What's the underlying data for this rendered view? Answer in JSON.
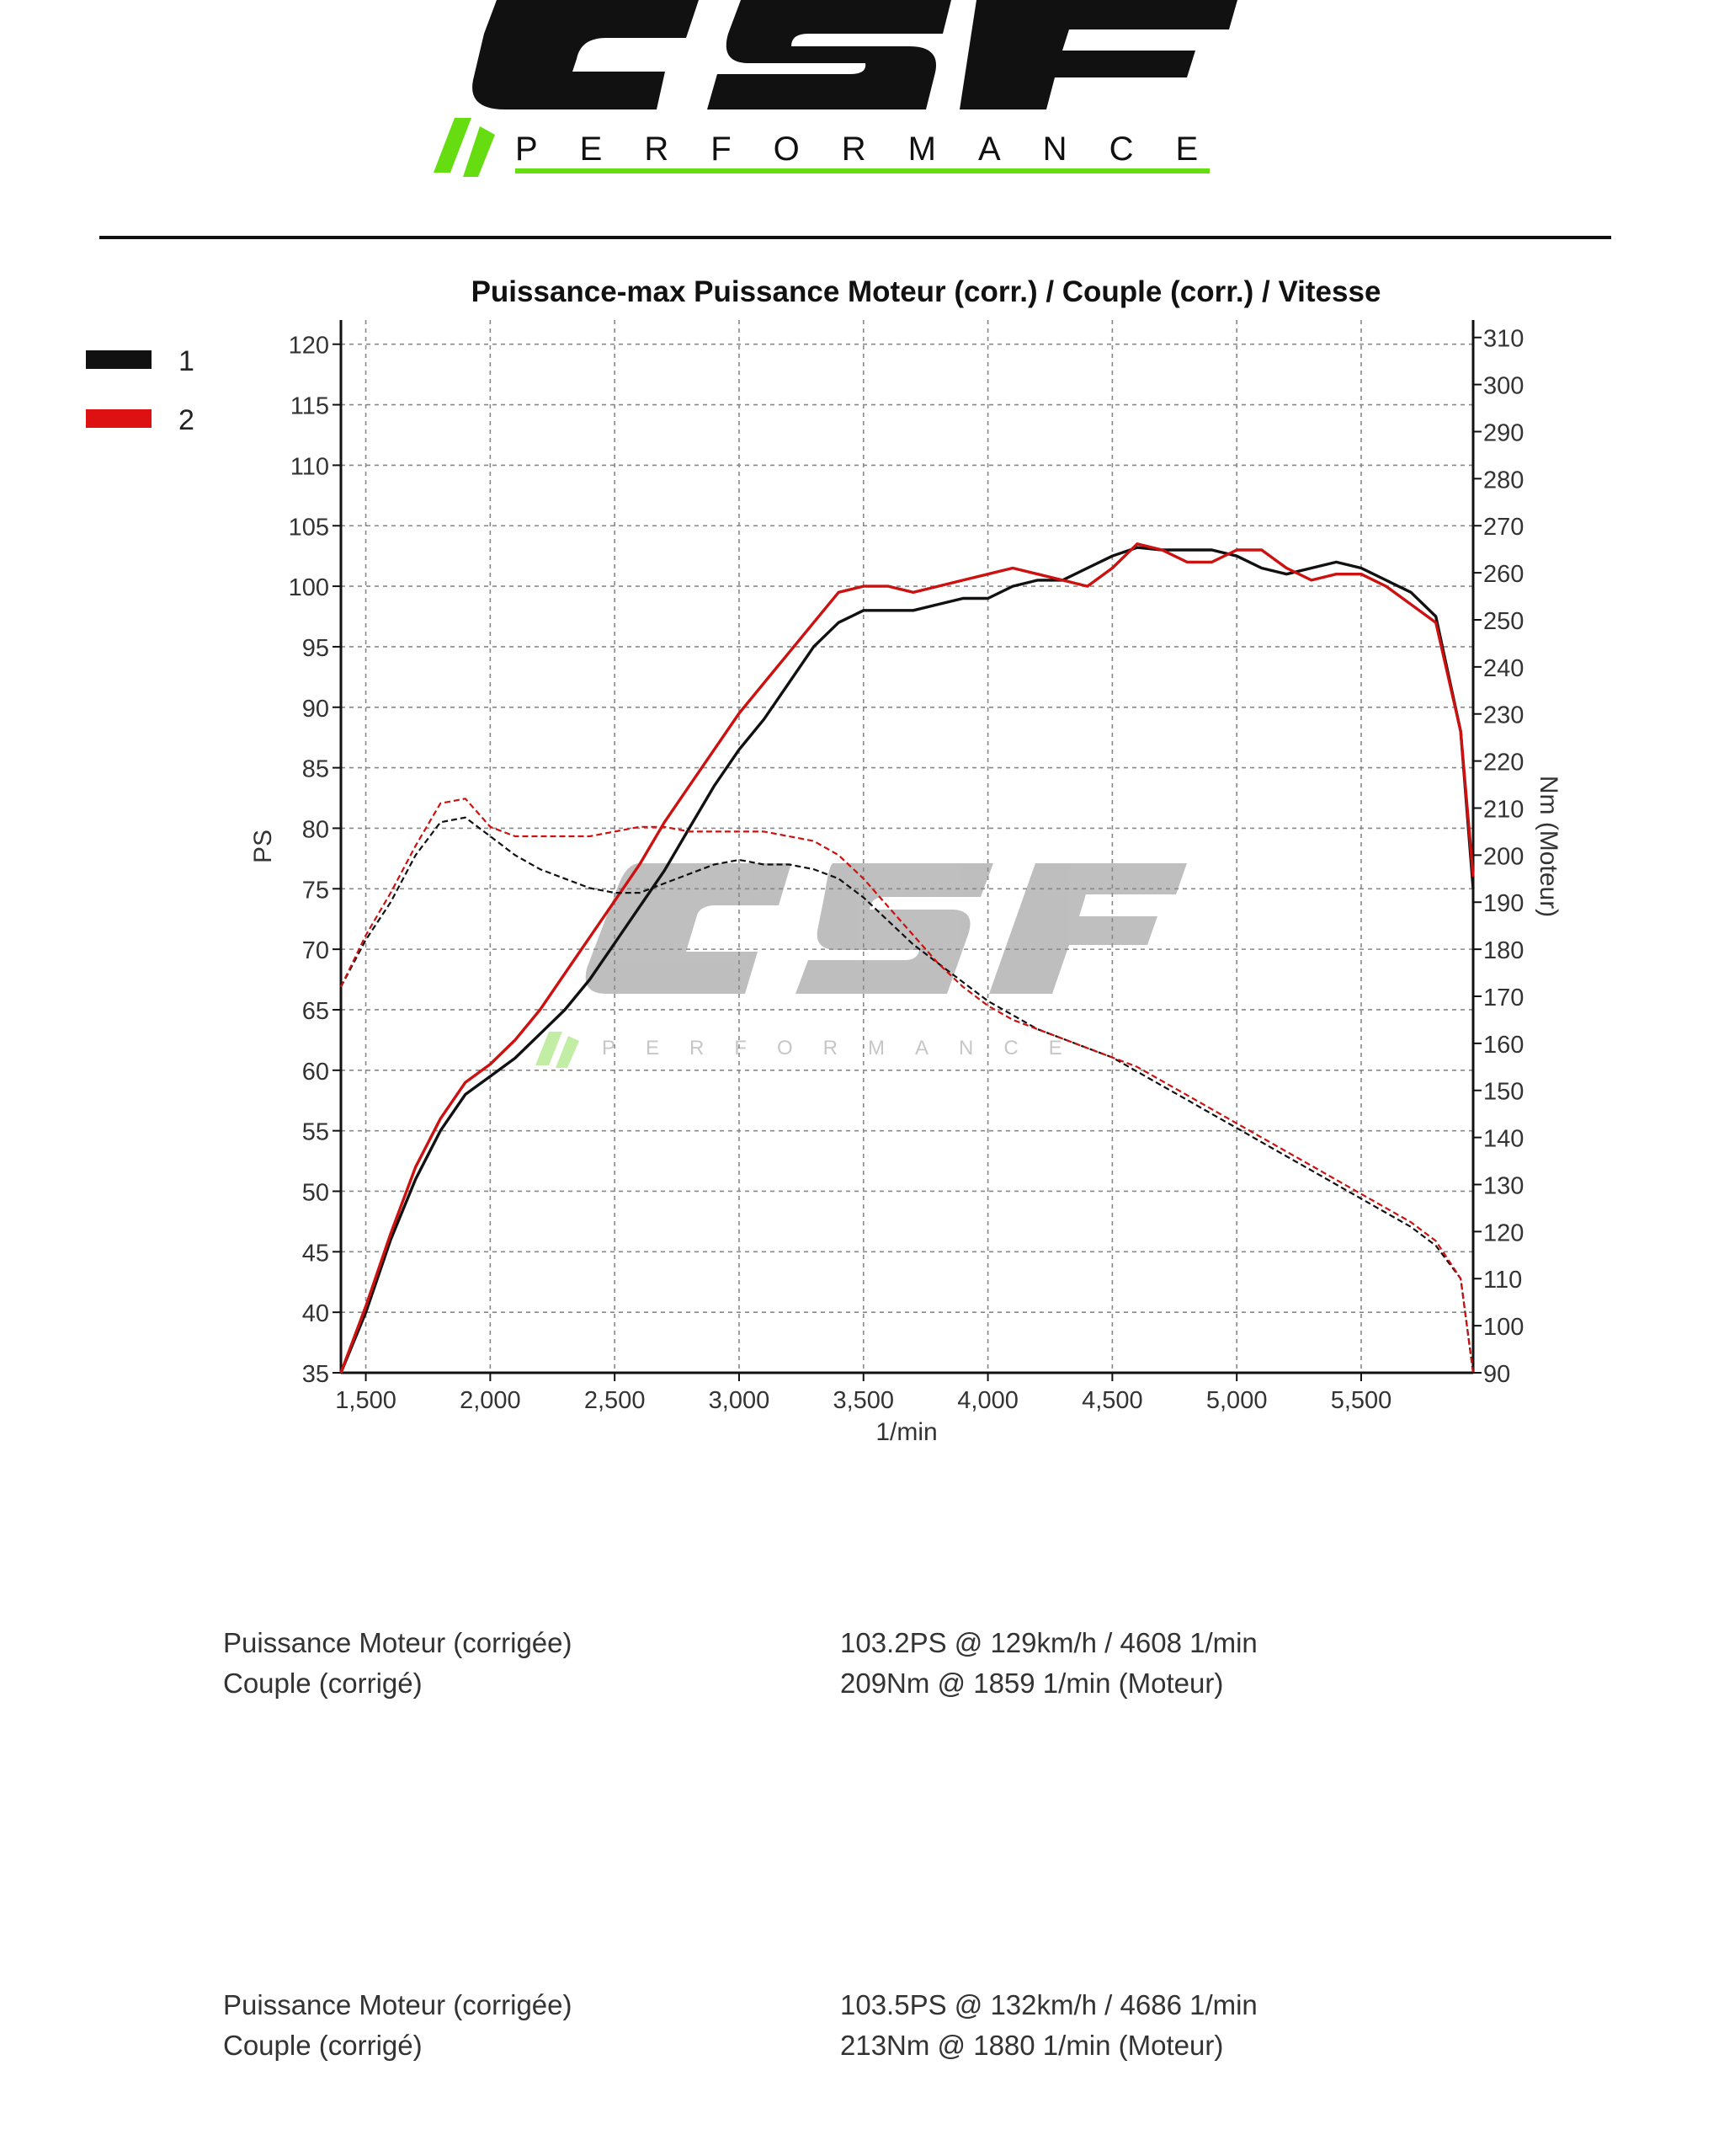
{
  "brand": {
    "logo_text": "CSF",
    "logo_subtext": "PERFORMANCE",
    "green": "#66dd11",
    "black": "#111111"
  },
  "legend": [
    {
      "label": "1",
      "color": "#111111"
    },
    {
      "label": "2",
      "color": "#dd1111"
    }
  ],
  "chart_data": {
    "type": "line",
    "title": "Puissance-max Puissance Moteur (corr.) / Couple (corr.) / Vitesse",
    "xlabel": "1/min",
    "ylabel_left": "PS",
    "ylabel_right": "Nm (Moteur)",
    "xlim": [
      1400,
      5950
    ],
    "ylim_left": [
      35,
      122
    ],
    "ylim_right": [
      90,
      310
    ],
    "x_ticks": [
      "1,500",
      "2,000",
      "2,500",
      "3,000",
      "3,500",
      "4,000",
      "4,500",
      "5,000",
      "5,500"
    ],
    "x_tick_values": [
      1500,
      2000,
      2500,
      3000,
      3500,
      4000,
      4500,
      5000,
      5500
    ],
    "y_left_ticks": [
      35,
      40,
      45,
      50,
      55,
      60,
      65,
      70,
      75,
      80,
      85,
      90,
      95,
      100,
      105,
      110,
      115,
      120
    ],
    "y_right_ticks": [
      90,
      100,
      110,
      120,
      130,
      140,
      150,
      160,
      170,
      180,
      190,
      200,
      210,
      220,
      230,
      240,
      250,
      260,
      270,
      280,
      290,
      300,
      310
    ],
    "grid": true,
    "legend_position": "top-left, outside",
    "series": [
      {
        "name": "1",
        "quantity": "power",
        "axis": "left",
        "color": "#111111",
        "style": "solid",
        "x": [
          1400,
          1500,
          1600,
          1700,
          1800,
          1900,
          2000,
          2100,
          2200,
          2300,
          2400,
          2500,
          2600,
          2700,
          2800,
          2900,
          3000,
          3100,
          3200,
          3300,
          3400,
          3500,
          3600,
          3700,
          3800,
          3900,
          4000,
          4100,
          4200,
          4300,
          4400,
          4500,
          4600,
          4700,
          4800,
          4900,
          5000,
          5100,
          5200,
          5300,
          5400,
          5500,
          5600,
          5700,
          5800,
          5900,
          5950
        ],
        "y": [
          35,
          40,
          46,
          51,
          55,
          58,
          59.5,
          61,
          63,
          65,
          67.5,
          70.5,
          73.5,
          76.5,
          80,
          83.5,
          86.5,
          89,
          92,
          95,
          97,
          98,
          98,
          98,
          98.5,
          99,
          99,
          100,
          100.5,
          100.5,
          101.5,
          102.5,
          103.2,
          103,
          103,
          103,
          102.5,
          101.5,
          101,
          101.5,
          102,
          101.5,
          100.5,
          99.5,
          97.5,
          88,
          75
        ]
      },
      {
        "name": "2",
        "quantity": "power",
        "axis": "left",
        "color": "#cc1111",
        "style": "solid",
        "x": [
          1400,
          1500,
          1600,
          1700,
          1800,
          1900,
          2000,
          2100,
          2200,
          2300,
          2400,
          2500,
          2600,
          2700,
          2800,
          2900,
          3000,
          3100,
          3200,
          3300,
          3400,
          3500,
          3600,
          3700,
          3800,
          3900,
          4000,
          4100,
          4200,
          4300,
          4400,
          4500,
          4600,
          4700,
          4800,
          4900,
          5000,
          5100,
          5200,
          5300,
          5400,
          5500,
          5600,
          5700,
          5800,
          5900,
          5950
        ],
        "y": [
          35,
          40.5,
          46.5,
          52,
          56,
          59,
          60.5,
          62.5,
          65,
          68,
          71,
          74,
          77,
          80.5,
          83.5,
          86.5,
          89.5,
          92,
          94.5,
          97,
          99.5,
          100,
          100,
          99.5,
          100,
          100.5,
          101,
          101.5,
          101,
          100.5,
          100,
          101.5,
          103.5,
          103,
          102,
          102,
          103,
          103,
          101.5,
          100.5,
          101,
          101,
          100,
          98.5,
          97,
          88,
          76
        ]
      },
      {
        "name": "1",
        "quantity": "torque",
        "axis": "right",
        "color": "#111111",
        "style": "dashed",
        "x": [
          1400,
          1500,
          1600,
          1700,
          1800,
          1900,
          2000,
          2100,
          2200,
          2300,
          2400,
          2500,
          2600,
          2700,
          2800,
          2900,
          3000,
          3100,
          3200,
          3300,
          3400,
          3500,
          3600,
          3700,
          3800,
          3900,
          4000,
          4100,
          4200,
          4300,
          4400,
          4500,
          4600,
          4700,
          4800,
          4900,
          5000,
          5100,
          5200,
          5300,
          5400,
          5500,
          5600,
          5700,
          5800,
          5900,
          5950
        ],
        "y": [
          172,
          182,
          190,
          200,
          207,
          208,
          204,
          200,
          197,
          195,
          193,
          192,
          192,
          194,
          196,
          198,
          199,
          198,
          198,
          197,
          195,
          191,
          186,
          181,
          177,
          173,
          169,
          166,
          163,
          161,
          159,
          157,
          154,
          151,
          148,
          145,
          142,
          139,
          136,
          133,
          130,
          127,
          124,
          121,
          117,
          110,
          90
        ]
      },
      {
        "name": "2",
        "quantity": "torque",
        "axis": "right",
        "color": "#cc1111",
        "style": "dashed",
        "x": [
          1400,
          1500,
          1600,
          1700,
          1800,
          1900,
          2000,
          2100,
          2200,
          2300,
          2400,
          2500,
          2600,
          2700,
          2800,
          2900,
          3000,
          3100,
          3200,
          3300,
          3400,
          3500,
          3600,
          3700,
          3800,
          3900,
          4000,
          4100,
          4200,
          4300,
          4400,
          4500,
          4600,
          4700,
          4800,
          4900,
          5000,
          5100,
          5200,
          5300,
          5400,
          5500,
          5600,
          5700,
          5800,
          5900,
          5950
        ],
        "y": [
          172,
          183,
          192,
          202,
          211,
          212,
          206,
          204,
          204,
          204,
          204,
          205,
          206,
          206,
          205,
          205,
          205,
          205,
          204,
          203,
          200,
          195,
          189,
          183,
          177,
          172,
          168,
          165,
          163,
          161,
          159,
          157,
          155,
          152,
          149,
          146,
          143,
          140,
          137,
          134,
          131,
          128,
          125,
          122,
          118,
          110,
          90
        ]
      }
    ]
  },
  "results": [
    {
      "label": "Puissance Moteur (corrigée)",
      "value": "103.2PS @ 129km/h / 4608 1/min"
    },
    {
      "label": "Couple (corrigé)",
      "value": "209Nm @ 1859 1/min (Moteur)"
    },
    {
      "label": "Puissance Moteur (corrigée)",
      "value": "103.5PS @ 132km/h / 4686 1/min"
    },
    {
      "label": "Couple (corrigé)",
      "value": "213Nm @ 1880 1/min (Moteur)"
    }
  ]
}
